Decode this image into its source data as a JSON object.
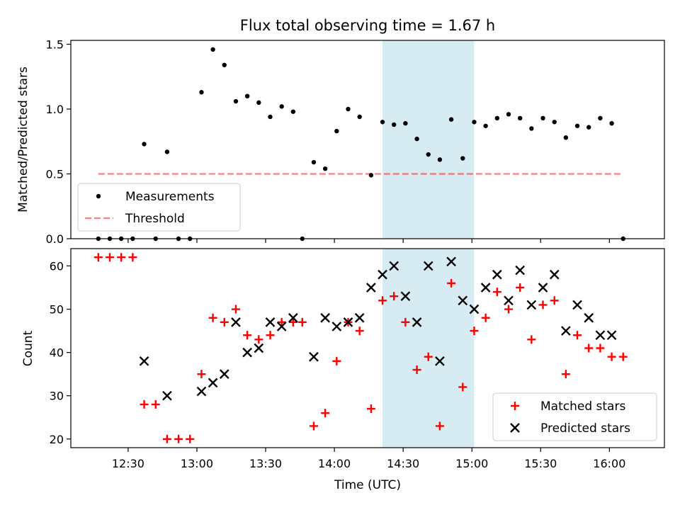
{
  "chart_data": [
    {
      "type": "scatter",
      "title": "Flux total observing time = 1.67 h",
      "ylabel": "Matched/Predicted stars",
      "xlim": [
        "12:05",
        "16:24"
      ],
      "ylim": [
        0,
        1.53
      ],
      "y_ticks": [
        0.0,
        0.5,
        1.0,
        1.5
      ],
      "y_tick_labels": [
        "0.0",
        "0.5",
        "1.0",
        "1.5"
      ],
      "shaded_region": {
        "x": [
          "14:21",
          "15:01"
        ],
        "color": "#add8e6"
      },
      "threshold": {
        "value": 0.5,
        "x": [
          "12:17",
          "16:05"
        ],
        "color": "#ff0000",
        "style": "dashed"
      },
      "legend": {
        "position": "lower-left",
        "entries": [
          "Measurements",
          "Threshold"
        ]
      },
      "series": [
        {
          "name": "Measurements",
          "color": "#000000",
          "x": [
            "12:17",
            "12:22",
            "12:27",
            "12:32",
            "12:37",
            "12:42",
            "12:47",
            "12:52",
            "12:57",
            "13:02",
            "13:07",
            "13:12",
            "13:17",
            "13:22",
            "13:27",
            "13:32",
            "13:37",
            "13:42",
            "13:46",
            "13:51",
            "13:56",
            "14:01",
            "14:06",
            "14:11",
            "14:16",
            "14:21",
            "14:26",
            "14:31",
            "14:36",
            "14:41",
            "14:46",
            "14:51",
            "14:56",
            "15:01",
            "15:06",
            "15:11",
            "15:16",
            "15:21",
            "15:26",
            "15:31",
            "15:36",
            "15:41",
            "15:46",
            "15:51",
            "15:56",
            "16:01",
            "16:06"
          ],
          "y": [
            0,
            0,
            0,
            0,
            0.73,
            0,
            0.67,
            0,
            0,
            1.13,
            1.46,
            1.34,
            1.06,
            1.1,
            1.05,
            0.94,
            1.02,
            0.98,
            0,
            0.59,
            0.54,
            0.83,
            1.0,
            0.94,
            0.49,
            0.9,
            0.88,
            0.89,
            0.77,
            0.65,
            0.61,
            0.92,
            0.62,
            0.9,
            0.87,
            0.93,
            0.96,
            0.93,
            0.85,
            0.93,
            0.9,
            0.78,
            0.87,
            0.86,
            0.93,
            0.89,
            0
          ]
        }
      ]
    },
    {
      "type": "scatter",
      "xlabel": "Time (UTC)",
      "ylabel": "Count",
      "xlim": [
        "12:05",
        "16:24"
      ],
      "ylim": [
        18,
        64
      ],
      "y_ticks": [
        20,
        30,
        40,
        50,
        60
      ],
      "y_tick_labels": [
        "20",
        "30",
        "40",
        "50",
        "60"
      ],
      "x_ticks": [
        "12:30",
        "13:00",
        "13:30",
        "14:00",
        "14:30",
        "15:00",
        "15:30",
        "16:00"
      ],
      "x_tick_labels": [
        "12:30",
        "13:00",
        "13:30",
        "14:00",
        "14:30",
        "15:00",
        "15:30",
        "16:00"
      ],
      "shaded_region": {
        "x": [
          "14:21",
          "15:01"
        ],
        "color": "#add8e6"
      },
      "legend": {
        "position": "lower-right",
        "entries": [
          "Matched stars",
          "Predicted stars"
        ]
      },
      "series": [
        {
          "name": "Matched stars",
          "marker": "+",
          "color": "#ff0000",
          "x": [
            "12:17",
            "12:22",
            "12:27",
            "12:32",
            "12:37",
            "12:42",
            "12:47",
            "12:52",
            "12:57",
            "13:02",
            "13:07",
            "13:12",
            "13:17",
            "13:22",
            "13:27",
            "13:32",
            "13:37",
            "13:42",
            "13:46",
            "13:51",
            "13:56",
            "14:01",
            "14:06",
            "14:11",
            "14:16",
            "14:21",
            "14:26",
            "14:31",
            "14:36",
            "14:41",
            "14:46",
            "14:51",
            "14:56",
            "15:01",
            "15:06",
            "15:11",
            "15:16",
            "15:21",
            "15:26",
            "15:31",
            "15:36",
            "15:41",
            "15:46",
            "15:51",
            "15:56",
            "16:01",
            "16:06"
          ],
          "y": [
            62,
            62,
            62,
            62,
            28,
            28,
            20,
            20,
            20,
            35,
            48,
            47,
            50,
            44,
            43,
            44,
            47,
            47,
            47,
            23,
            26,
            38,
            47,
            45,
            27,
            52,
            53,
            47,
            36,
            39,
            23,
            56,
            32,
            45,
            48,
            54,
            50,
            55,
            43,
            51,
            52,
            35,
            44,
            41,
            41,
            39,
            39
          ]
        },
        {
          "name": "Predicted stars",
          "marker": "x",
          "color": "#000000",
          "x": [
            "12:37",
            "12:47",
            "13:02",
            "13:07",
            "13:12",
            "13:17",
            "13:22",
            "13:27",
            "13:32",
            "13:37",
            "13:42",
            "13:51",
            "13:56",
            "14:01",
            "14:06",
            "14:11",
            "14:16",
            "14:21",
            "14:26",
            "14:31",
            "14:36",
            "14:41",
            "14:46",
            "14:51",
            "14:56",
            "15:01",
            "15:06",
            "15:11",
            "15:16",
            "15:21",
            "15:26",
            "15:31",
            "15:36",
            "15:41",
            "15:46",
            "15:51",
            "15:56",
            "16:01"
          ],
          "y": [
            38,
            30,
            31,
            33,
            35,
            47,
            40,
            41,
            47,
            46,
            48,
            39,
            48,
            46,
            47,
            48,
            55,
            58,
            60,
            53,
            47,
            60,
            38,
            61,
            52,
            50,
            55,
            58,
            52,
            59,
            51,
            55,
            58,
            45,
            51,
            48,
            44,
            44
          ]
        }
      ]
    }
  ]
}
